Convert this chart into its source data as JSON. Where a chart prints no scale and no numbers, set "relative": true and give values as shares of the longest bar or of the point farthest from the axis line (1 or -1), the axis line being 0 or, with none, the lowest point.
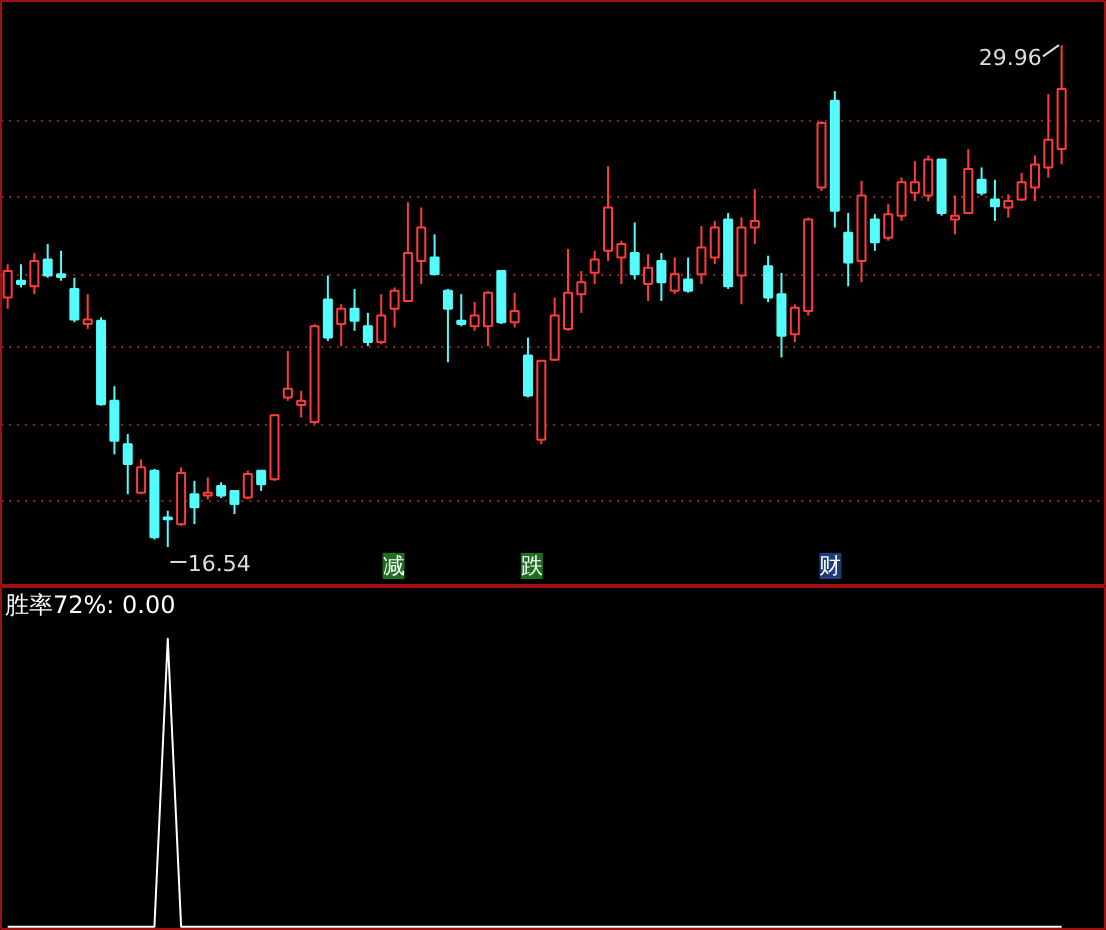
{
  "chart_data": [
    {
      "type": "candlestick",
      "categories": [
        null,
        null,
        null,
        null,
        null,
        null,
        null,
        null,
        null,
        null,
        null,
        null,
        null,
        null,
        null,
        null,
        null,
        null,
        null,
        null,
        null,
        null,
        null,
        null,
        null,
        null,
        null,
        null,
        null,
        null,
        null,
        null,
        null,
        null,
        null,
        null,
        null,
        null,
        null,
        null,
        null,
        null,
        null,
        null,
        null,
        null,
        null,
        null,
        null,
        null,
        null,
        null,
        null,
        null,
        null,
        null,
        null,
        null,
        null,
        null,
        null,
        null,
        null,
        null,
        null,
        null,
        null,
        null,
        null,
        null,
        null,
        null,
        null,
        null,
        null,
        null,
        null,
        null,
        null,
        null
      ],
      "ohlc": [
        [
          23.21,
          24.1,
          22.91,
          23.92
        ],
        [
          23.66,
          24.1,
          23.48,
          23.57
        ],
        [
          23.51,
          24.4,
          23.3,
          24.19
        ],
        [
          24.23,
          24.64,
          23.74,
          23.8
        ],
        [
          23.83,
          24.46,
          23.66,
          23.76
        ],
        [
          23.44,
          23.74,
          22.55,
          22.62
        ],
        [
          22.5,
          23.3,
          22.37,
          22.62
        ],
        [
          22.59,
          22.68,
          20.32,
          20.36
        ],
        [
          20.45,
          20.84,
          19.02,
          19.38
        ],
        [
          19.29,
          19.56,
          17.95,
          18.76
        ],
        [
          17.99,
          18.88,
          17.95,
          18.67
        ],
        [
          18.58,
          18.63,
          16.74,
          16.8
        ],
        [
          17.33,
          17.51,
          16.54,
          17.28
        ],
        [
          17.15,
          18.67,
          17.1,
          18.52
        ],
        [
          17.95,
          18.31,
          17.15,
          17.6
        ],
        [
          17.92,
          18.4,
          17.81,
          17.99
        ],
        [
          18.17,
          18.27,
          17.85,
          17.92
        ],
        [
          18.04,
          18.04,
          17.42,
          17.69
        ],
        [
          17.86,
          18.58,
          17.81,
          18.49
        ],
        [
          18.58,
          18.58,
          18.04,
          18.22
        ],
        [
          18.35,
          20.09,
          18.31,
          20.06
        ],
        [
          20.54,
          21.78,
          20.45,
          20.77
        ],
        [
          20.34,
          20.72,
          20.0,
          20.45
        ],
        [
          19.88,
          22.5,
          19.82,
          22.44
        ],
        [
          23.16,
          23.8,
          22.05,
          22.14
        ],
        [
          22.5,
          23.03,
          21.91,
          22.91
        ],
        [
          22.91,
          23.44,
          22.32,
          22.59
        ],
        [
          22.44,
          22.8,
          21.91,
          22.02
        ],
        [
          22.02,
          23.3,
          21.96,
          22.73
        ],
        [
          22.91,
          23.48,
          22.41,
          23.39
        ],
        [
          23.12,
          25.76,
          23.12,
          24.4
        ],
        [
          24.19,
          25.62,
          23.57,
          25.08
        ],
        [
          24.28,
          24.9,
          23.83,
          23.83
        ],
        [
          23.39,
          23.44,
          21.48,
          22.91
        ],
        [
          22.59,
          23.3,
          22.44,
          22.5
        ],
        [
          22.44,
          23.09,
          22.32,
          22.73
        ],
        [
          22.44,
          23.39,
          21.91,
          23.34
        ],
        [
          23.92,
          23.92,
          22.5,
          22.55
        ],
        [
          22.55,
          23.34,
          22.41,
          22.85
        ],
        [
          21.66,
          22.14,
          20.54,
          20.59
        ],
        [
          19.41,
          21.52,
          19.29,
          21.52
        ],
        [
          21.55,
          23.21,
          21.52,
          22.73
        ],
        [
          22.37,
          24.51,
          22.32,
          23.34
        ],
        [
          23.3,
          23.92,
          22.8,
          23.62
        ],
        [
          23.87,
          24.46,
          23.57,
          24.23
        ],
        [
          24.46,
          26.72,
          24.19,
          25.62
        ],
        [
          24.28,
          24.73,
          23.57,
          24.64
        ],
        [
          24.4,
          25.22,
          23.69,
          23.83
        ],
        [
          23.57,
          24.37,
          23.12,
          24.01
        ],
        [
          24.19,
          24.4,
          23.12,
          23.62
        ],
        [
          23.39,
          24.28,
          23.3,
          23.83
        ],
        [
          23.69,
          24.28,
          23.34,
          23.39
        ],
        [
          23.83,
          25.12,
          23.57,
          24.55
        ],
        [
          24.28,
          25.26,
          24.1,
          25.08
        ],
        [
          25.3,
          25.47,
          23.44,
          23.51
        ],
        [
          23.8,
          25.35,
          23.03,
          25.08
        ],
        [
          25.08,
          26.11,
          24.64,
          25.26
        ],
        [
          24.05,
          24.33,
          23.09,
          23.21
        ],
        [
          23.3,
          23.87,
          21.61,
          22.19
        ],
        [
          22.23,
          23.03,
          22.02,
          22.94
        ],
        [
          22.85,
          25.35,
          22.73,
          25.3
        ],
        [
          26.15,
          27.93,
          26.06,
          27.88
        ],
        [
          28.47,
          28.73,
          25.08,
          25.53
        ],
        [
          24.94,
          25.47,
          23.51,
          24.15
        ],
        [
          24.19,
          26.33,
          23.62,
          25.94
        ],
        [
          25.3,
          25.44,
          24.46,
          24.69
        ],
        [
          24.81,
          25.71,
          24.73,
          25.44
        ],
        [
          25.4,
          26.42,
          25.26,
          26.29
        ],
        [
          26.01,
          26.86,
          25.79,
          26.29
        ],
        [
          25.94,
          27.01,
          25.79,
          26.9
        ],
        [
          26.9,
          26.9,
          25.4,
          25.47
        ],
        [
          25.3,
          25.94,
          24.9,
          25.4
        ],
        [
          25.47,
          27.18,
          25.44,
          26.65
        ],
        [
          26.36,
          26.69,
          25.94,
          26.01
        ],
        [
          25.83,
          26.36,
          25.26,
          25.65
        ],
        [
          25.62,
          25.97,
          25.35,
          25.79
        ],
        [
          25.83,
          26.54,
          25.79,
          26.29
        ],
        [
          26.15,
          27.01,
          25.79,
          26.77
        ],
        [
          26.69,
          28.65,
          26.42,
          27.43
        ],
        [
          27.18,
          29.96,
          26.77,
          28.79
        ]
      ],
      "colors": [
        "#ff3c3c",
        "#54fcfc",
        "#ff3c3c",
        "#54fcfc",
        "#54fcfc",
        "#54fcfc",
        "#ff3c3c",
        "#54fcfc",
        "#54fcfc",
        "#54fcfc",
        "#ff3c3c",
        "#54fcfc",
        "#54fcfc",
        "#ff3c3c",
        "#54fcfc",
        "#ff3c3c",
        "#54fcfc",
        "#54fcfc",
        "#ff3c3c",
        "#54fcfc",
        "#ff3c3c",
        "#ff3c3c",
        "#ff3c3c",
        "#ff3c3c",
        "#54fcfc",
        "#ff3c3c",
        "#54fcfc",
        "#54fcfc",
        "#ff3c3c",
        "#ff3c3c",
        "#ff3c3c",
        "#ff3c3c",
        "#54fcfc",
        "#54fcfc",
        "#54fcfc",
        "#ff3c3c",
        "#ff3c3c",
        "#54fcfc",
        "#ff3c3c",
        "#54fcfc",
        "#ff3c3c",
        "#ff3c3c",
        "#ff3c3c",
        "#ff3c3c",
        "#ff3c3c",
        "#ff3c3c",
        "#ff3c3c",
        "#54fcfc",
        "#ff3c3c",
        "#54fcfc",
        "#ff3c3c",
        "#54fcfc",
        "#ff3c3c",
        "#ff3c3c",
        "#54fcfc",
        "#ff3c3c",
        "#ff3c3c",
        "#54fcfc",
        "#54fcfc",
        "#ff3c3c",
        "#ff3c3c",
        "#ff3c3c",
        "#54fcfc",
        "#54fcfc",
        "#ff3c3c",
        "#54fcfc",
        "#ff3c3c",
        "#ff3c3c",
        "#ff3c3c",
        "#ff3c3c",
        "#54fcfc",
        "#ff3c3c",
        "#ff3c3c",
        "#54fcfc",
        "#54fcfc",
        "#ff3c3c",
        "#ff3c3c",
        "#ff3c3c",
        "#ff3c3c",
        "#ff3c3c"
      ],
      "ylim": [
        15.47,
        31.14
      ],
      "yticks": [
        {
          "value": 17.78,
          "label": null
        },
        {
          "value": 19.82,
          "label": null
        },
        {
          "value": 21.87,
          "label": null
        },
        {
          "value": 23.83,
          "label": null
        },
        {
          "value": 25.88,
          "label": null
        },
        {
          "value": 27.93,
          "label": null
        }
      ],
      "grid": "y",
      "tick_labels": false,
      "annotations": [
        "16.54",
        "29.96",
        "减",
        "跌",
        "财"
      ]
    },
    {
      "type": "line",
      "title": "胜率72%: 0.00",
      "relative": true,
      "categories": [
        null,
        null,
        null,
        null,
        null,
        null,
        null,
        null,
        null,
        null,
        null,
        null,
        null,
        null,
        null,
        null,
        null,
        null,
        null,
        null,
        null,
        null,
        null,
        null,
        null,
        null,
        null,
        null,
        null,
        null,
        null,
        null,
        null,
        null,
        null,
        null,
        null,
        null,
        null,
        null,
        null,
        null,
        null,
        null,
        null,
        null,
        null,
        null,
        null,
        null,
        null,
        null,
        null,
        null,
        null,
        null,
        null,
        null,
        null,
        null,
        null,
        null,
        null,
        null,
        null,
        null,
        null,
        null,
        null,
        null,
        null,
        null,
        null,
        null,
        null,
        null,
        null,
        null,
        null,
        null
      ],
      "values": [
        0,
        0,
        0,
        0,
        0,
        0,
        0,
        0,
        0,
        0,
        0,
        0,
        1,
        0,
        0,
        0,
        0,
        0,
        0,
        0,
        0,
        0,
        0,
        0,
        0,
        0,
        0,
        0,
        0,
        0,
        0,
        0,
        0,
        0,
        0,
        0,
        0,
        0,
        0,
        0,
        0,
        0,
        0,
        0,
        0,
        0,
        0,
        0,
        0,
        0,
        0,
        0,
        0,
        0,
        0,
        0,
        0,
        0,
        0,
        0,
        0,
        0,
        0,
        0,
        0,
        0,
        0,
        0,
        0,
        0,
        0,
        0,
        0,
        0,
        0,
        0,
        0,
        0,
        0,
        0
      ],
      "color": "#ffffff"
    }
  ]
}
